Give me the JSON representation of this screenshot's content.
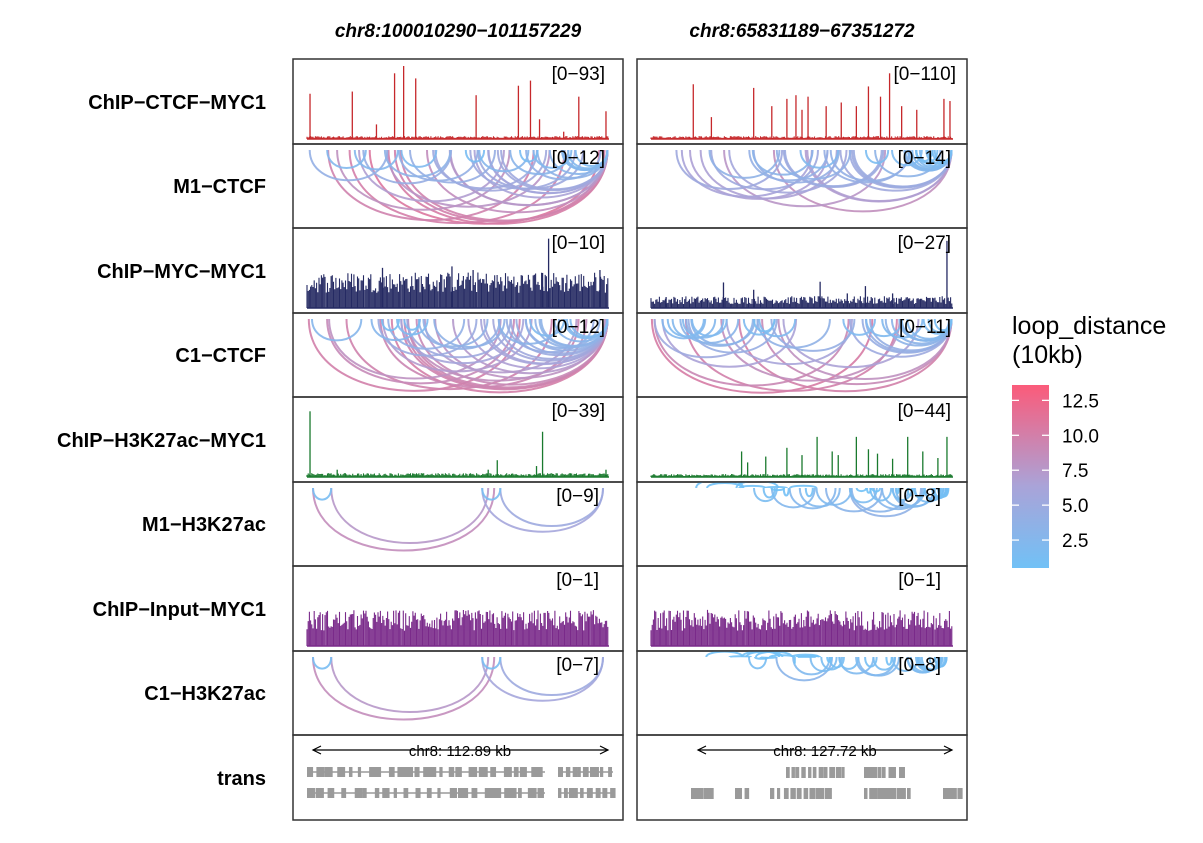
{
  "chart_data": {
    "type": "genome-track-panel",
    "columns": [
      {
        "title": "chr8:100010290−101157229",
        "scale_label": "chr8: 112.89 kb"
      },
      {
        "title": "chr8:65831189−67351272",
        "scale_label": "chr8: 127.72 kb"
      }
    ],
    "tracks": [
      {
        "label": "ChIP−CTCF−MYC1",
        "kind": "signal",
        "color": "#C6282B",
        "ranges": [
          "[0−93]",
          "[0−110]"
        ],
        "max": [
          93,
          110
        ],
        "baseline_frac": [
          0.03,
          0.03
        ],
        "peaks": [
          [
            [
              0.01,
              0.62
            ],
            [
              0.15,
              0.65
            ],
            [
              0.23,
              0.2
            ],
            [
              0.29,
              0.9
            ],
            [
              0.32,
              1.0
            ],
            [
              0.36,
              0.83
            ],
            [
              0.56,
              0.6
            ],
            [
              0.7,
              0.73
            ],
            [
              0.74,
              0.8
            ],
            [
              0.77,
              0.27
            ],
            [
              0.85,
              0.1
            ],
            [
              0.9,
              0.58
            ],
            [
              0.99,
              0.38
            ]
          ],
          [
            [
              0.14,
              0.75
            ],
            [
              0.2,
              0.3
            ],
            [
              0.34,
              0.7
            ],
            [
              0.4,
              0.45
            ],
            [
              0.45,
              0.55
            ],
            [
              0.48,
              0.6
            ],
            [
              0.5,
              0.4
            ],
            [
              0.52,
              0.58
            ],
            [
              0.58,
              0.45
            ],
            [
              0.63,
              0.5
            ],
            [
              0.68,
              0.45
            ],
            [
              0.72,
              0.72
            ],
            [
              0.76,
              0.58
            ],
            [
              0.79,
              0.9
            ],
            [
              0.83,
              0.45
            ],
            [
              0.88,
              0.4
            ],
            [
              0.97,
              0.55
            ],
            [
              0.99,
              0.52
            ]
          ]
        ]
      },
      {
        "label": "M1−CTCF",
        "kind": "arcs",
        "ranges": [
          "[0−12]",
          "[0−14]"
        ],
        "density": [
          42,
          40
        ],
        "span_bias": [
          0.85,
          0.65
        ]
      },
      {
        "label": "ChIP−MYC−MYC1",
        "kind": "signal",
        "color": "#252A63",
        "ranges": [
          "[0−10]",
          "[0−27]"
        ],
        "max": [
          10,
          27
        ],
        "baseline_frac": [
          0.38,
          0.12
        ],
        "peaks": [
          [
            [
              0.25,
              0.55
            ],
            [
              0.48,
              0.57
            ],
            [
              0.55,
              0.52
            ],
            [
              0.78,
              0.48
            ],
            [
              0.8,
              0.95
            ],
            [
              0.97,
              0.52
            ]
          ],
          [
            [
              0.05,
              0.15
            ],
            [
              0.24,
              0.35
            ],
            [
              0.34,
              0.25
            ],
            [
              0.56,
              0.36
            ],
            [
              0.65,
              0.2
            ],
            [
              0.71,
              0.3
            ],
            [
              0.8,
              0.2
            ],
            [
              0.98,
              0.92
            ]
          ]
        ]
      },
      {
        "label": "C1−CTCF",
        "kind": "arcs",
        "ranges": [
          "[0−12]",
          "[0−11]"
        ],
        "density": [
          46,
          42
        ],
        "span_bias": [
          0.9,
          0.75
        ]
      },
      {
        "label": "ChIP−H3K27ac−MYC1",
        "kind": "signal",
        "color": "#1A7A2E",
        "ranges": [
          "[0−39]",
          "[0−44]"
        ],
        "max": [
          39,
          44
        ],
        "baseline_frac": [
          0.04,
          0.03
        ],
        "peaks": [
          [
            [
              0.01,
              0.9
            ],
            [
              0.1,
              0.1
            ],
            [
              0.35,
              0.05
            ],
            [
              0.6,
              0.1
            ],
            [
              0.63,
              0.23
            ],
            [
              0.76,
              0.15
            ],
            [
              0.78,
              0.62
            ],
            [
              0.99,
              0.1
            ]
          ],
          [
            [
              0.3,
              0.35
            ],
            [
              0.32,
              0.2
            ],
            [
              0.38,
              0.28
            ],
            [
              0.45,
              0.4
            ],
            [
              0.5,
              0.3
            ],
            [
              0.55,
              0.55
            ],
            [
              0.6,
              0.35
            ],
            [
              0.62,
              0.3
            ],
            [
              0.68,
              0.55
            ],
            [
              0.72,
              0.38
            ],
            [
              0.75,
              0.32
            ],
            [
              0.8,
              0.25
            ],
            [
              0.85,
              0.55
            ],
            [
              0.9,
              0.35
            ],
            [
              0.95,
              0.26
            ],
            [
              0.98,
              0.55
            ]
          ]
        ]
      },
      {
        "label": "M1−H3K27ac",
        "kind": "arcs",
        "ranges": [
          "[0−9]",
          "[0−8]"
        ],
        "density": [
          6,
          40
        ],
        "span_bias": [
          0.7,
          0.5
        ]
      },
      {
        "label": "ChIP−Input−MYC1",
        "kind": "signal",
        "color": "#7A2A8A",
        "ranges": [
          "[0−1]",
          "[0−1]"
        ],
        "max": [
          1,
          1
        ],
        "baseline_frac": [
          0.38,
          0.38
        ],
        "peaks": [
          [],
          []
        ]
      },
      {
        "label": "C1−H3K27ac",
        "kind": "arcs",
        "ranges": [
          "[0−7]",
          "[0−8]"
        ],
        "density": [
          6,
          38
        ],
        "span_bias": [
          0.7,
          0.5
        ]
      },
      {
        "label": "trans",
        "kind": "genes",
        "ranges": [
          "",
          ""
        ]
      }
    ],
    "legend": {
      "title_line1": "loop_distance",
      "title_line2": "(10kb)",
      "ticks": [
        "12.5",
        "10.0",
        "7.5",
        "5.0",
        "2.5"
      ],
      "tick_values": [
        12.5,
        10.0,
        7.5,
        5.0,
        2.5
      ],
      "min": 0.5,
      "max": 13.6,
      "color_low": "#71C1F6",
      "color_mid": "#AAA3D8",
      "color_high": "#FB5B7A"
    },
    "gene_color": "#9A9A9A"
  }
}
